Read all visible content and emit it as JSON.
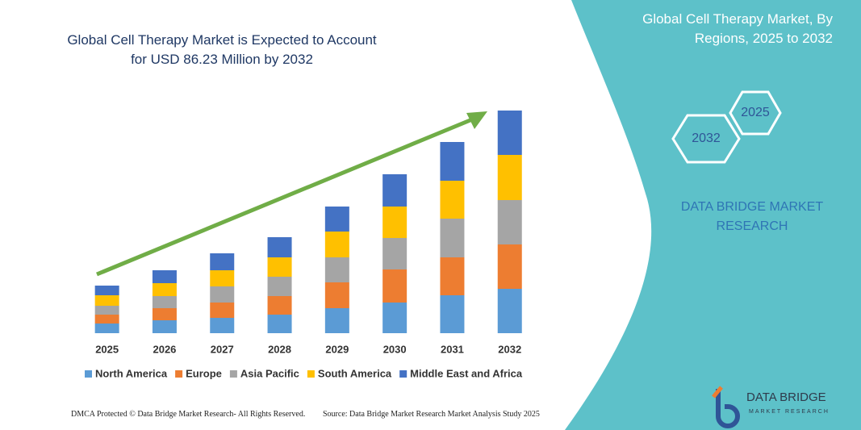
{
  "chart_data": {
    "type": "stacked_bar",
    "title": "Global Cell Therapy Market is Expected to Account for USD 86.23 Million by 2032",
    "categories": [
      "2025",
      "2026",
      "2027",
      "2028",
      "2029",
      "2030",
      "2031",
      "2032"
    ],
    "series": [
      {
        "name": "North America",
        "color": "#5b9bd5",
        "values": [
          12,
          16,
          19,
          23,
          31,
          38,
          47,
          55
        ]
      },
      {
        "name": "Europe",
        "color": "#ed7d31",
        "values": [
          11,
          15,
          19,
          23,
          32,
          41,
          47,
          55
        ]
      },
      {
        "name": "Asia Pacific",
        "color": "#a5a5a5",
        "values": [
          11,
          15,
          20,
          24,
          31,
          39,
          48,
          55
        ]
      },
      {
        "name": "South America",
        "color": "#ffc000",
        "values": [
          13,
          16,
          20,
          24,
          32,
          39,
          47,
          56
        ]
      },
      {
        "name": "Middle East and Africa",
        "color": "#4472c4",
        "values": [
          12,
          16,
          21,
          25,
          31,
          40,
          48,
          55
        ]
      }
    ],
    "ylim": [
      0,
      280
    ],
    "legend": "bottom"
  },
  "panel": {
    "title": "Global Cell Therapy Market, By Regions, 2025 to 2032",
    "hex_back": "2025",
    "hex_front": "2032",
    "brand": "DATA BRIDGE MARKET RESEARCH"
  },
  "logo": {
    "name": "DATA BRIDGE",
    "tagline": "MARKET RESEARCH"
  },
  "footer": {
    "left": "DMCA Protected © Data Bridge Market Research- All Rights Reserved.",
    "right": "Source: Data Bridge Market Research Market Analysis Study 2025"
  }
}
